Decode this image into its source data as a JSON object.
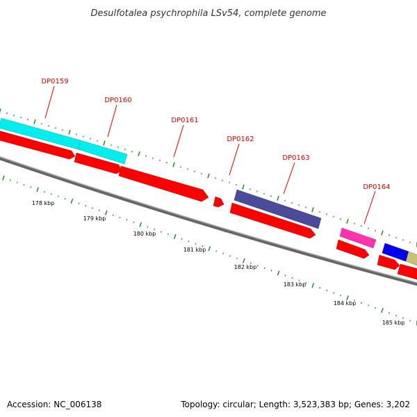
{
  "title": "Desulfotalea psychrophila LSv54, complete genome",
  "footer": {
    "accession": "Accession: NC_006138",
    "summary": "Topology: circular; Length: 3,523,383 bp; Genes: 3,202"
  },
  "genes": [
    {
      "label": "DP0159",
      "color": "#00ffff"
    },
    {
      "label": "DP0160",
      "color": "#00ffff"
    },
    {
      "label": "DP0161",
      "color": "#ff0000"
    },
    {
      "label": "DP0162",
      "color": "#ff0000"
    },
    {
      "label": "DP0163",
      "color": "#4b4b9a"
    },
    {
      "label": "DP0164",
      "color": "#ff33aa"
    }
  ],
  "scale": [
    "178 kbp",
    "179 kbp",
    "180 kbp",
    "181 kbp",
    "182 kbp",
    "183 kbp",
    "184 kbp",
    "185 kbp"
  ],
  "colors": {
    "cds": "#ff0000",
    "backbone": "#808080",
    "ticks": "#228b22",
    "gene_label": "#cc0000"
  }
}
